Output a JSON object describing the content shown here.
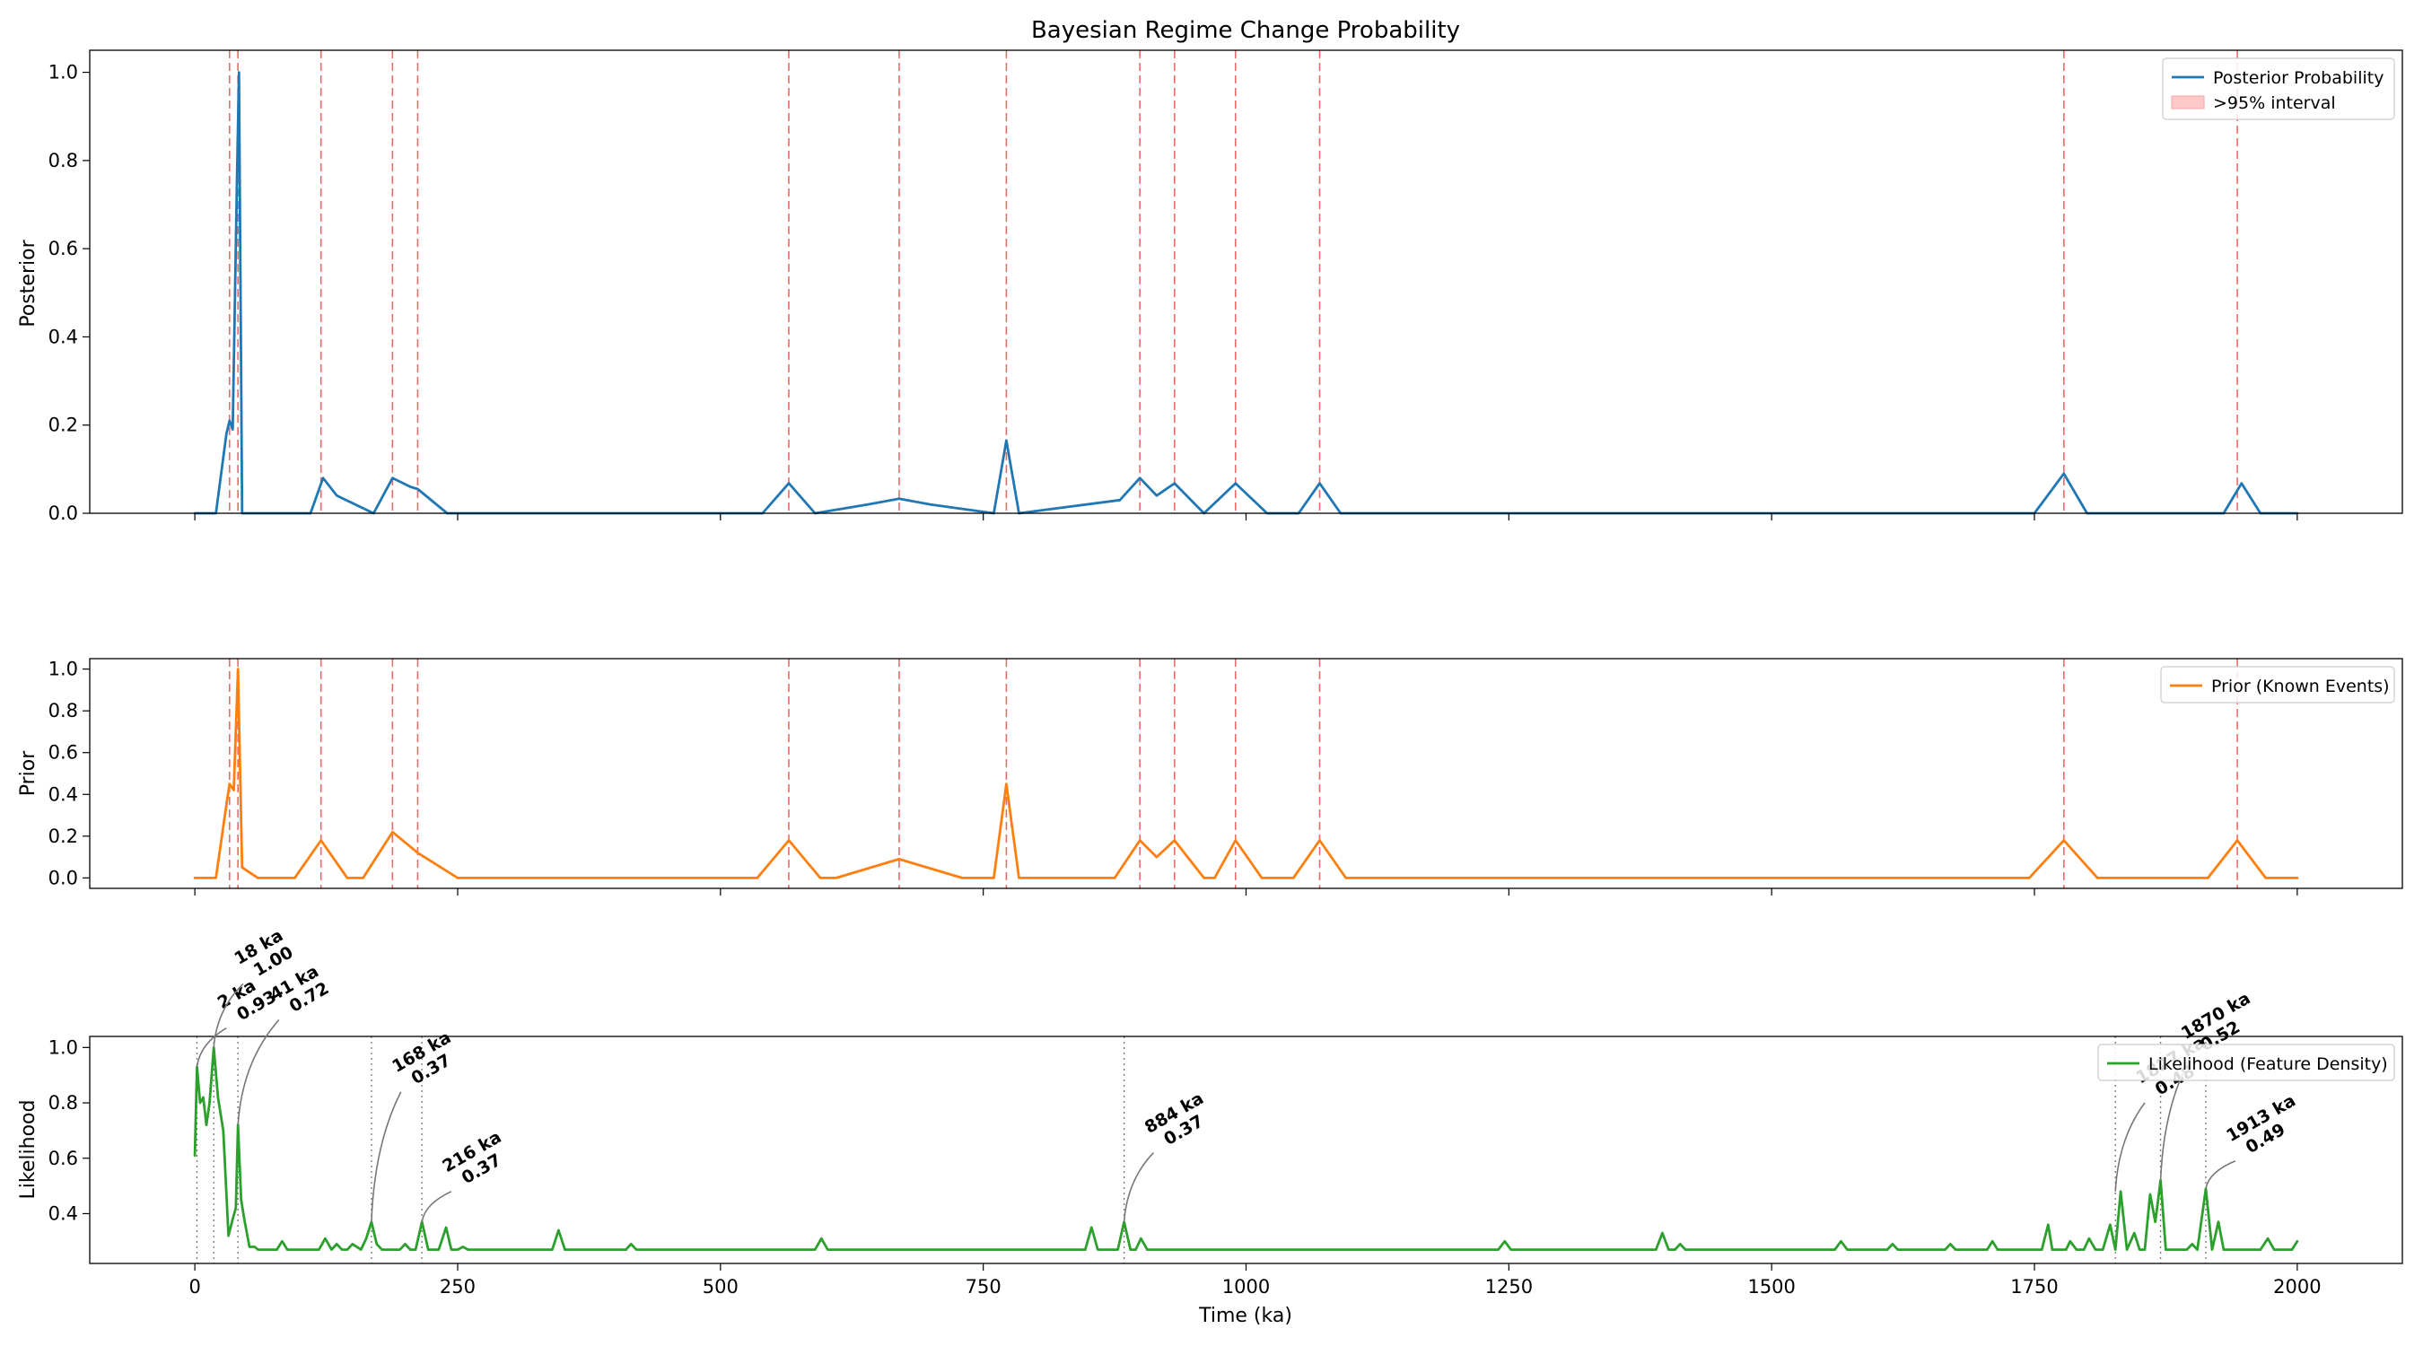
{
  "chart_data": [
    {
      "type": "line",
      "panel": "posterior",
      "title": "Bayesian Regime Change Probability",
      "xlabel": "",
      "ylabel": "Posterior",
      "xlim": [
        -100,
        2100
      ],
      "ylim": [
        0,
        1.05
      ],
      "yticks": [
        0.0,
        0.2,
        0.4,
        0.6,
        0.8,
        1.0
      ],
      "ytick_labels": [
        "0.0",
        "0.2",
        "0.4",
        "0.6",
        "0.8",
        "1.0"
      ],
      "legend": {
        "placement": "top-right",
        "entries": [
          "Posterior Probability",
          ">95% interval"
        ]
      },
      "series": [
        {
          "name": "Posterior Probability",
          "color": "#1f77b4",
          "x": [
            0,
            20,
            30,
            33,
            36,
            40,
            42,
            45,
            60,
            110,
            122,
            135,
            170,
            188,
            205,
            212,
            240,
            540,
            565,
            590,
            640,
            670,
            700,
            760,
            772,
            784,
            880,
            899,
            915,
            932,
            960,
            990,
            1020,
            1050,
            1070,
            1090,
            1750,
            1778,
            1800,
            1930,
            1947,
            1965,
            2000
          ],
          "y": [
            0.0,
            0.0,
            0.18,
            0.21,
            0.19,
            0.75,
            1.0,
            0.0,
            0.0,
            0.0,
            0.08,
            0.04,
            0.0,
            0.08,
            0.06,
            0.055,
            0.0,
            0.0,
            0.068,
            0.0,
            0.02,
            0.033,
            0.02,
            0.0,
            0.165,
            0.0,
            0.03,
            0.08,
            0.04,
            0.068,
            0.0,
            0.068,
            0.0,
            0.0,
            0.068,
            0.0,
            0.0,
            0.09,
            0.0,
            0.0,
            0.068,
            0.0,
            0.0
          ]
        }
      ],
      "vlines": [
        33,
        41,
        120,
        188,
        212,
        565,
        670,
        772,
        899,
        932,
        990,
        1070,
        1778,
        1943
      ]
    },
    {
      "type": "line",
      "panel": "prior",
      "xlabel": "",
      "ylabel": "Prior",
      "xlim": [
        -100,
        2100
      ],
      "ylim": [
        -0.05,
        1.05
      ],
      "yticks": [
        0.0,
        0.2,
        0.4,
        0.6,
        0.8,
        1.0
      ],
      "ytick_labels": [
        "0.0",
        "0.2",
        "0.4",
        "0.6",
        "0.8",
        "1.0"
      ],
      "legend": {
        "placement": "top-right",
        "entries": [
          "Prior (Known Events)"
        ]
      },
      "series": [
        {
          "name": "Prior (Known Events)",
          "color": "#ff7f0e",
          "x": [
            0,
            20,
            30,
            33,
            37,
            41,
            45,
            60,
            95,
            120,
            145,
            160,
            188,
            212,
            250,
            535,
            565,
            595,
            610,
            670,
            730,
            760,
            772,
            784,
            875,
            899,
            915,
            932,
            960,
            970,
            990,
            1015,
            1045,
            1070,
            1095,
            1745,
            1778,
            1810,
            1915,
            1943,
            1970,
            2000
          ],
          "y": [
            0.0,
            0.0,
            0.35,
            0.45,
            0.42,
            1.0,
            0.05,
            0.0,
            0.0,
            0.18,
            0.0,
            0.0,
            0.22,
            0.12,
            0.0,
            0.0,
            0.18,
            0.0,
            0.0,
            0.09,
            0.0,
            0.0,
            0.45,
            0.0,
            0.0,
            0.18,
            0.1,
            0.18,
            0.0,
            0.0,
            0.18,
            0.0,
            0.0,
            0.18,
            0.0,
            0.0,
            0.18,
            0.0,
            0.0,
            0.18,
            0.0,
            0.0
          ]
        }
      ],
      "vlines": [
        33,
        41,
        120,
        188,
        212,
        565,
        670,
        772,
        899,
        932,
        990,
        1070,
        1778,
        1943
      ]
    },
    {
      "type": "line",
      "panel": "likelihood",
      "xlabel": "Time (ka)",
      "ylabel": "Likelihood",
      "xlim": [
        -100,
        2100
      ],
      "ylim": [
        0.22,
        1.04
      ],
      "xticks": [
        0,
        250,
        500,
        750,
        1000,
        1250,
        1500,
        1750,
        2000
      ],
      "xtick_labels": [
        "0",
        "250",
        "500",
        "750",
        "1000",
        "1250",
        "1500",
        "1750",
        "2000"
      ],
      "yticks": [
        0.4,
        0.6,
        0.8,
        1.0
      ],
      "ytick_labels": [
        "0.4",
        "0.6",
        "0.8",
        "1.0"
      ],
      "legend": {
        "placement": "top-right",
        "entries": [
          "Likelihood (Feature Density)"
        ]
      },
      "series": [
        {
          "name": "Likelihood (Feature Density)",
          "color": "#2ca02c",
          "x": [
            0,
            2,
            5,
            8,
            11,
            14,
            18,
            22,
            27,
            32,
            36,
            39,
            41,
            44,
            47,
            52,
            57,
            60,
            70,
            78,
            83,
            88,
            110,
            118,
            124,
            130,
            135,
            140,
            145,
            150,
            158,
            163,
            168,
            173,
            178,
            195,
            200,
            205,
            210,
            216,
            222,
            232,
            239,
            244,
            250,
            255,
            260,
            340,
            346,
            352,
            358,
            410,
            415,
            420,
            590,
            596,
            602,
            840,
            847,
            853,
            859,
            878,
            884,
            890,
            895,
            900,
            906,
            1240,
            1246,
            1252,
            1390,
            1396,
            1402,
            1408,
            1413,
            1418,
            1560,
            1566,
            1572,
            1610,
            1615,
            1620,
            1665,
            1670,
            1675,
            1705,
            1710,
            1715,
            1750,
            1757,
            1763,
            1767,
            1773,
            1780,
            1784,
            1790,
            1797,
            1802,
            1808,
            1815,
            1822,
            1827,
            1832,
            1838,
            1845,
            1850,
            1855,
            1860,
            1865,
            1870,
            1875,
            1880,
            1895,
            1900,
            1905,
            1913,
            1919,
            1925,
            1930,
            1935,
            1965,
            1972,
            1978,
            1985,
            1995,
            2000
          ],
          "y": [
            0.61,
            0.93,
            0.8,
            0.82,
            0.72,
            0.8,
            1.0,
            0.82,
            0.7,
            0.32,
            0.38,
            0.42,
            0.72,
            0.45,
            0.38,
            0.28,
            0.28,
            0.27,
            0.27,
            0.27,
            0.3,
            0.27,
            0.27,
            0.27,
            0.31,
            0.27,
            0.29,
            0.27,
            0.27,
            0.29,
            0.27,
            0.31,
            0.37,
            0.29,
            0.27,
            0.27,
            0.29,
            0.27,
            0.27,
            0.37,
            0.27,
            0.27,
            0.35,
            0.27,
            0.27,
            0.28,
            0.27,
            0.27,
            0.34,
            0.27,
            0.27,
            0.27,
            0.29,
            0.27,
            0.27,
            0.31,
            0.27,
            0.27,
            0.27,
            0.35,
            0.27,
            0.27,
            0.37,
            0.27,
            0.27,
            0.31,
            0.27,
            0.27,
            0.3,
            0.27,
            0.27,
            0.33,
            0.27,
            0.27,
            0.29,
            0.27,
            0.27,
            0.3,
            0.27,
            0.27,
            0.29,
            0.27,
            0.27,
            0.29,
            0.27,
            0.27,
            0.3,
            0.27,
            0.27,
            0.27,
            0.36,
            0.27,
            0.27,
            0.27,
            0.3,
            0.27,
            0.27,
            0.31,
            0.27,
            0.27,
            0.36,
            0.27,
            0.48,
            0.27,
            0.33,
            0.27,
            0.27,
            0.47,
            0.37,
            0.52,
            0.27,
            0.27,
            0.27,
            0.29,
            0.27,
            0.49,
            0.27,
            0.37,
            0.27,
            0.27,
            0.27,
            0.31,
            0.27,
            0.27,
            0.27,
            0.3
          ]
        }
      ],
      "vlines": [
        2,
        18,
        41,
        168,
        216,
        884,
        1827,
        1870,
        1913
      ],
      "annotations": [
        {
          "x": 2,
          "y": 0.93,
          "label_line1": "2 ka",
          "label_line2": "0.93",
          "tx": 30,
          "ty": 1.07
        },
        {
          "x": 18,
          "y": 1.0,
          "label_line1": "18 ka",
          "label_line2": "1.00",
          "tx": 46,
          "ty": 1.23
        },
        {
          "x": 41,
          "y": 0.72,
          "label_line1": "41 ka",
          "label_line2": "0.72",
          "tx": 80,
          "ty": 1.1
        },
        {
          "x": 168,
          "y": 0.37,
          "label_line1": "168 ka",
          "label_line2": "0.37",
          "tx": 196,
          "ty": 0.84
        },
        {
          "x": 216,
          "y": 0.37,
          "label_line1": "216 ka",
          "label_line2": "0.37",
          "tx": 244,
          "ty": 0.48
        },
        {
          "x": 884,
          "y": 0.37,
          "label_line1": "884 ka",
          "label_line2": "0.37",
          "tx": 912,
          "ty": 0.62
        },
        {
          "x": 1827,
          "y": 0.48,
          "label_line1": "1827 ka",
          "label_line2": "0.48",
          "tx": 1855,
          "ty": 0.8
        },
        {
          "x": 1870,
          "y": 0.52,
          "label_line1": "1870 ka",
          "label_line2": "0.52",
          "tx": 1898,
          "ty": 0.96
        },
        {
          "x": 1913,
          "y": 0.49,
          "label_line1": "1913 ka",
          "label_line2": "0.49",
          "tx": 1941,
          "ty": 0.59
        }
      ]
    }
  ]
}
